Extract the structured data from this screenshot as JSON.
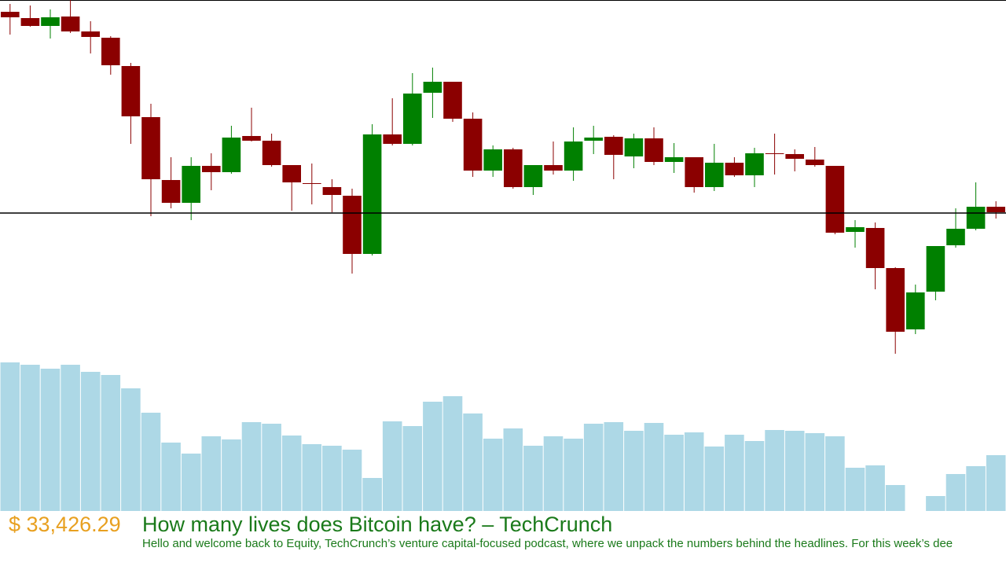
{
  "chart_data": {
    "type": "candlestick",
    "open": [
      435,
      427,
      417,
      429,
      410,
      402,
      366,
      301,
      221,
      192,
      239,
      231,
      277,
      271,
      240,
      217,
      212,
      201,
      127,
      279,
      267,
      332,
      346,
      299,
      233,
      260,
      212,
      240,
      233,
      271,
      276,
      251,
      274,
      244,
      250,
      212,
      243,
      227,
      255,
      254,
      247,
      239,
      155,
      160,
      109,
      31,
      79,
      138,
      159,
      187
    ],
    "high": [
      445,
      443,
      438,
      450,
      423,
      404,
      370,
      318,
      250,
      250,
      255,
      290,
      313,
      280,
      240,
      242,
      222,
      210,
      292,
      325,
      357,
      364,
      346,
      307,
      265,
      262,
      240,
      270,
      288,
      290,
      278,
      280,
      288,
      268,
      250,
      267,
      250,
      262,
      280,
      260,
      263,
      239,
      170,
      167,
      110,
      88,
      137,
      185,
      218,
      194
    ],
    "low": [
      406,
      416,
      401,
      408,
      382,
      355,
      267,
      175,
      185,
      170,
      208,
      229,
      270,
      238,
      182,
      190,
      180,
      102,
      125,
      265,
      265,
      300,
      295,
      225,
      225,
      210,
      202,
      228,
      220,
      254,
      222,
      236,
      240,
      230,
      205,
      207,
      225,
      212,
      228,
      232,
      238,
      152,
      135,
      82,
      0,
      25,
      68,
      135,
      157,
      172
    ],
    "close": [
      428,
      417,
      428,
      410,
      403,
      367,
      302,
      222,
      192,
      239,
      231,
      275,
      271,
      240,
      218,
      216,
      202,
      127,
      279,
      267,
      331,
      346,
      299,
      233,
      260,
      212,
      240,
      233,
      270,
      275,
      253,
      274,
      244,
      250,
      212,
      243,
      227,
      255,
      254,
      248,
      240,
      154,
      161,
      109,
      28,
      78,
      137,
      159,
      187,
      180
    ],
    "ylim": [
      0,
      450
    ],
    "up_color": "#008000",
    "down_color": "#8b0000",
    "reference_line": 179,
    "volume": {
      "values": [
        189,
        186,
        181,
        186,
        177,
        173,
        156,
        125,
        87,
        73,
        95,
        91,
        113,
        111,
        96,
        85,
        83,
        78,
        42,
        114,
        108,
        139,
        146,
        124,
        92,
        105,
        83,
        95,
        92,
        111,
        113,
        102,
        112,
        97,
        100,
        82,
        97,
        89,
        103,
        102,
        99,
        95,
        55,
        58,
        33,
        0,
        19,
        47,
        57,
        71
      ],
      "ylim": [
        0,
        190
      ],
      "color": "#add8e6"
    }
  },
  "ticker": {
    "price": "$ 33,426.29",
    "headline": "How many lives does Bitcoin have? – TechCrunch",
    "description": "Hello and welcome back to Equity, TechCrunch’s venture capital-focused podcast, where we unpack the numbers behind the headlines. For this week’s dee"
  }
}
